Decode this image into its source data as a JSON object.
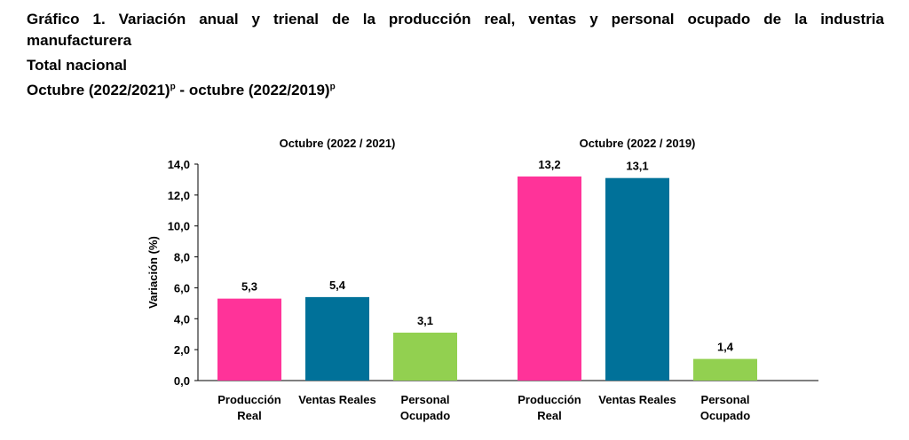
{
  "header": {
    "title": "Gráfico 1. Variación anual y trienal de la producción real, ventas y personal ocupado de la industria manufacturera",
    "subtitle": "Total nacional",
    "period_a": "Octubre (2022/2021)",
    "period_a_mark": "p",
    "period_sep": " - ",
    "period_b": "octubre (2022/2019)",
    "period_b_mark": "p"
  },
  "chart_data": {
    "type": "bar",
    "ylabel": "Variación (%)",
    "ylim": [
      0,
      14
    ],
    "yticks": [
      "0,0",
      "2,0",
      "4,0",
      "6,0",
      "8,0",
      "10,0",
      "12,0",
      "14,0"
    ],
    "grid": false,
    "groups": [
      {
        "title": "Octubre (2022 / 2021)",
        "bars": [
          {
            "category": [
              "Producción",
              "Real"
            ],
            "value": 5.3,
            "label": "5,3",
            "color": "#FF3399"
          },
          {
            "category": [
              "Ventas Reales"
            ],
            "value": 5.4,
            "label": "5,4",
            "color": "#007199"
          },
          {
            "category": [
              "Personal",
              "Ocupado"
            ],
            "value": 3.1,
            "label": "3,1",
            "color": "#92D050"
          }
        ]
      },
      {
        "title": "Octubre (2022 / 2019)",
        "bars": [
          {
            "category": [
              "Producción",
              "Real"
            ],
            "value": 13.2,
            "label": "13,2",
            "color": "#FF3399"
          },
          {
            "category": [
              "Ventas Reales"
            ],
            "value": 13.1,
            "label": "13,1",
            "color": "#007199"
          },
          {
            "category": [
              "Personal",
              "Ocupado"
            ],
            "value": 1.4,
            "label": "1,4",
            "color": "#92D050"
          }
        ]
      }
    ]
  }
}
